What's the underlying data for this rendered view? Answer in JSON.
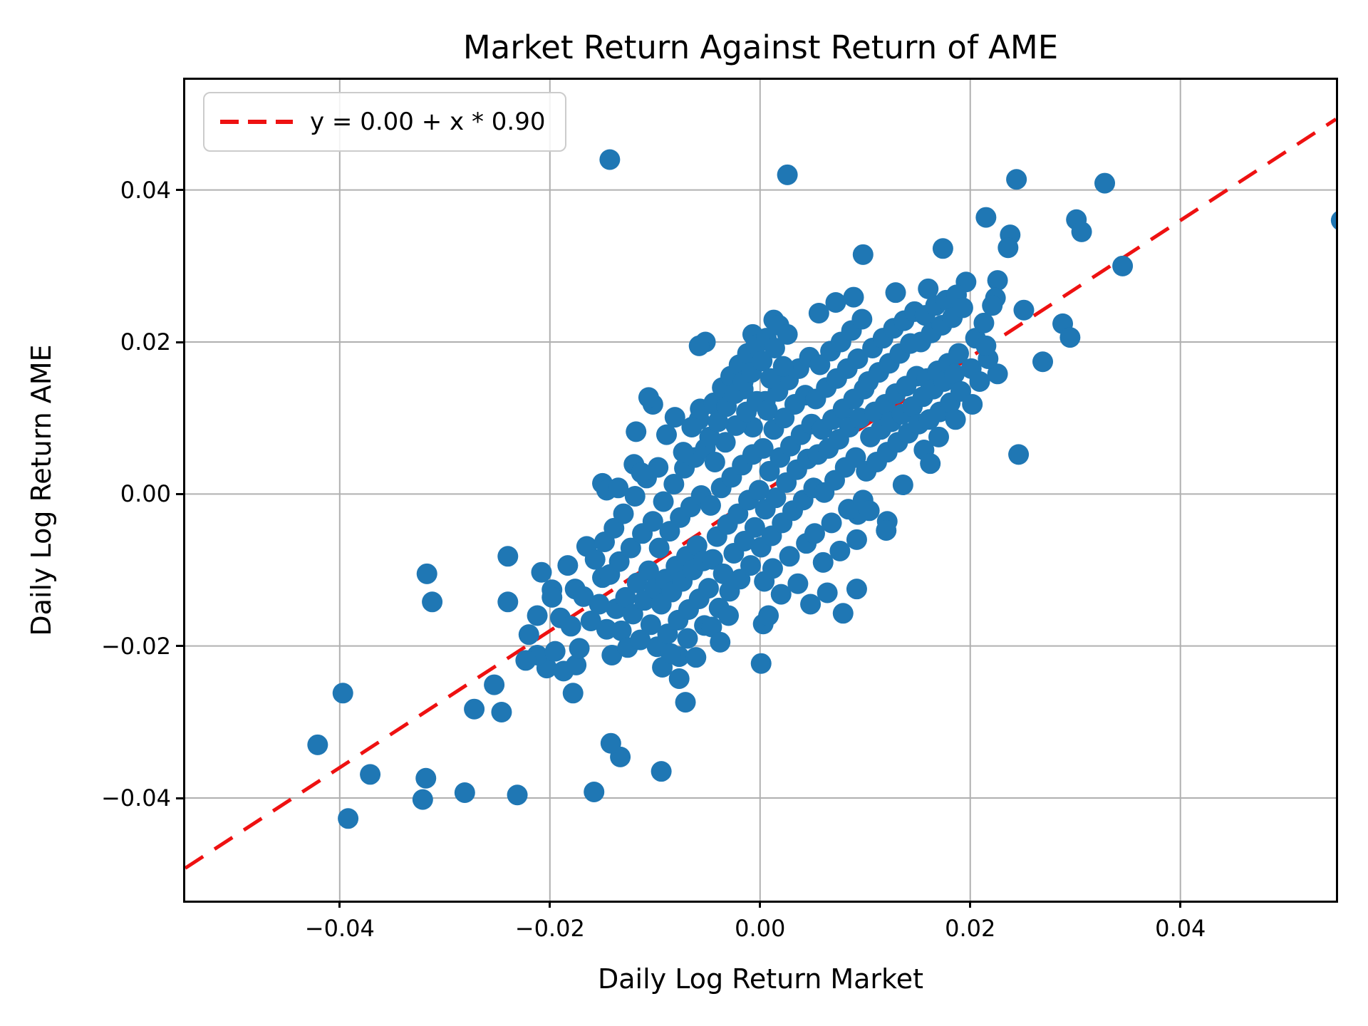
{
  "title": "Market Return Against Return of AME",
  "legend": {
    "entries": [
      {
        "label": "y = 0.00 + x * 0.90",
        "style": "dashed",
        "color": "#ee1111"
      }
    ]
  },
  "colors": {
    "point": "#1f77b4",
    "line": "#ee1111",
    "grid": "#b0b0b0",
    "spine": "#000000",
    "text": "#000000",
    "legend_edge": "#cccccc"
  },
  "chart_data": {
    "type": "scatter",
    "title": "Market Return Against Return of AME",
    "xlabel": "Daily Log Return Market",
    "ylabel": "Daily Log Return AME",
    "xlim": [
      -0.0547,
      0.0548
    ],
    "ylim": [
      -0.0535,
      0.0545
    ],
    "grid": true,
    "legend_position": "upper-left",
    "xticks": {
      "values": [
        -0.04,
        -0.02,
        0.0,
        0.02,
        0.04
      ],
      "labels": [
        "−0.04",
        "−0.02",
        "0.00",
        "0.02",
        "0.04"
      ]
    },
    "yticks": {
      "values": [
        0.04,
        0.02,
        0.0,
        -0.02,
        -0.04
      ],
      "labels": [
        "0.04",
        "0.02",
        "0.00",
        "−0.02",
        "−0.04"
      ]
    },
    "regression_line": {
      "label": "y = 0.00 + x * 0.90",
      "intercept": 0.0,
      "slope": 0.9,
      "color": "#ee1111",
      "dash": [
        30,
        19
      ],
      "width": 5
    },
    "marker": {
      "color": "#1f77b4",
      "radius": 14.5
    },
    "points": [
      [
        -0.0143,
        0.044
      ],
      [
        0.0026,
        0.042
      ],
      [
        0.0244,
        0.0414
      ],
      [
        0.0328,
        0.0409
      ],
      [
        0.0553,
        0.036
      ],
      [
        0.0215,
        0.0364
      ],
      [
        0.0238,
        0.0341
      ],
      [
        0.0236,
        0.0324
      ],
      [
        0.0301,
        0.0361
      ],
      [
        0.0306,
        0.0345
      ],
      [
        0.0345,
        0.03
      ],
      [
        0.0174,
        0.0323
      ],
      [
        0.0098,
        0.0315
      ],
      [
        0.0089,
        0.0259
      ],
      [
        0.0129,
        0.0265
      ],
      [
        0.016,
        0.027
      ],
      [
        0.0196,
        0.0279
      ],
      [
        0.0226,
        0.0281
      ],
      [
        0.0224,
        0.0258
      ],
      [
        0.0251,
        0.0242
      ],
      [
        0.0288,
        0.0224
      ],
      [
        0.0295,
        0.0206
      ],
      [
        0.0269,
        0.0174
      ],
      [
        0.0226,
        0.0158
      ],
      [
        0.0013,
        0.0229
      ],
      [
        0.0246,
        0.0052
      ],
      [
        0.0121,
        -0.0036
      ],
      [
        0.0093,
        -0.0027
      ],
      [
        0.0092,
        -0.0125
      ],
      [
        0.0079,
        -0.0157
      ],
      [
        0.0003,
        -0.0171
      ],
      [
        0.0001,
        -0.0223
      ],
      [
        -0.0077,
        -0.0214
      ],
      [
        -0.0071,
        -0.0274
      ],
      [
        -0.0094,
        -0.0365
      ],
      [
        -0.0133,
        -0.0346
      ],
      [
        -0.0142,
        -0.0328
      ],
      [
        -0.0158,
        -0.0392
      ],
      [
        -0.0175,
        -0.0225
      ],
      [
        -0.0178,
        -0.0262
      ],
      [
        -0.0203,
        -0.0229
      ],
      [
        -0.0212,
        -0.0212
      ],
      [
        -0.0223,
        -0.0219
      ],
      [
        -0.0231,
        -0.0396
      ],
      [
        -0.024,
        -0.0142
      ],
      [
        -0.024,
        -0.0082
      ],
      [
        -0.0246,
        -0.0287
      ],
      [
        -0.0253,
        -0.0251
      ],
      [
        -0.0272,
        -0.0283
      ],
      [
        -0.0281,
        -0.0393
      ],
      [
        -0.0312,
        -0.0142
      ],
      [
        -0.0317,
        -0.0105
      ],
      [
        -0.0318,
        -0.0374
      ],
      [
        -0.0321,
        -0.0402
      ],
      [
        -0.0371,
        -0.0369
      ],
      [
        -0.0392,
        -0.0427
      ],
      [
        -0.0397,
        -0.0262
      ],
      [
        -0.0421,
        -0.033
      ],
      [
        -0.0208,
        -0.0103
      ],
      [
        -0.0198,
        -0.0126
      ],
      [
        -0.0102,
        0.0118
      ],
      [
        -0.0052,
        0.02
      ],
      [
        -0.0007,
        0.021
      ],
      [
        -0.0043,
        0.0117
      ],
      [
        -0.0118,
        0.0082
      ],
      [
        -0.0007,
        0.0088
      ],
      [
        -0.0106,
        0.0127
      ],
      [
        -0.015,
        0.0014
      ],
      [
        -0.012,
        0.0039
      ],
      [
        -0.0058,
        0.0098
      ],
      [
        -0.0025,
        0.0144
      ],
      [
        0.0005,
        0.0122
      ],
      [
        -0.0212,
        -0.016
      ],
      [
        -0.022,
        -0.0185
      ],
      [
        -0.0058,
        0.0195
      ],
      [
        -0.0016,
        0.0138
      ],
      [
        -0.0198,
        -0.0136
      ],
      [
        -0.0195,
        -0.0207
      ],
      [
        -0.019,
        -0.0163
      ],
      [
        -0.0187,
        -0.0233
      ],
      [
        -0.0183,
        -0.0094
      ],
      [
        -0.018,
        -0.0174
      ],
      [
        -0.0176,
        -0.0125
      ],
      [
        -0.0172,
        -0.0203
      ],
      [
        -0.0168,
        -0.0135
      ],
      [
        -0.0165,
        -0.0069
      ],
      [
        -0.0161,
        -0.0167
      ],
      [
        -0.0157,
        -0.0086
      ],
      [
        -0.0153,
        -0.0145
      ],
      [
        -0.015,
        -0.011
      ],
      [
        -0.0148,
        -0.0063
      ],
      [
        -0.0146,
        -0.0178
      ],
      [
        -0.0143,
        -0.0106
      ],
      [
        -0.0141,
        -0.0212
      ],
      [
        -0.0139,
        -0.0045
      ],
      [
        -0.0137,
        -0.0151
      ],
      [
        -0.0134,
        -0.0089
      ],
      [
        -0.0132,
        -0.018
      ],
      [
        -0.013,
        -0.0026
      ],
      [
        -0.0128,
        -0.0136
      ],
      [
        -0.0126,
        -0.0202
      ],
      [
        -0.0123,
        -0.0071
      ],
      [
        -0.0121,
        -0.0158
      ],
      [
        -0.0119,
        -0.0003
      ],
      [
        -0.0117,
        -0.0117
      ],
      [
        -0.0114,
        -0.0192
      ],
      [
        -0.0112,
        -0.0052
      ],
      [
        -0.011,
        -0.014
      ],
      [
        -0.0108,
        0.0021
      ],
      [
        -0.0106,
        -0.0101
      ],
      [
        -0.0104,
        -0.0172
      ],
      [
        -0.0102,
        -0.0036
      ],
      [
        -0.01,
        -0.0124
      ],
      [
        -0.0113,
        0.0028
      ],
      [
        -0.0146,
        0.0005
      ],
      [
        -0.0135,
        0.0008
      ],
      [
        -0.0098,
        -0.0201
      ],
      [
        -0.0096,
        -0.0071
      ],
      [
        -0.0094,
        -0.0145
      ],
      [
        -0.0092,
        -0.001
      ],
      [
        -0.009,
        -0.0112
      ],
      [
        -0.0088,
        -0.0184
      ],
      [
        -0.0086,
        -0.0049
      ],
      [
        -0.0084,
        -0.0129
      ],
      [
        -0.0082,
        0.0013
      ],
      [
        -0.008,
        -0.0095
      ],
      [
        -0.0078,
        -0.0166
      ],
      [
        -0.0076,
        -0.0031
      ],
      [
        -0.0074,
        -0.0115
      ],
      [
        -0.0072,
        0.0034
      ],
      [
        -0.007,
        -0.0082
      ],
      [
        -0.0068,
        -0.0152
      ],
      [
        -0.0066,
        -0.0017
      ],
      [
        -0.0064,
        -0.01
      ],
      [
        -0.0062,
        0.0048
      ],
      [
        -0.006,
        -0.0068
      ],
      [
        -0.0058,
        -0.0138
      ],
      [
        -0.0056,
        -0.0002
      ],
      [
        -0.0054,
        -0.0088
      ],
      [
        -0.0052,
        0.006
      ],
      [
        -0.0097,
        0.0035
      ],
      [
        -0.0089,
        0.0078
      ],
      [
        -0.0081,
        0.0101
      ],
      [
        -0.0073,
        0.0055
      ],
      [
        -0.0065,
        0.0088
      ],
      [
        -0.0057,
        0.0112
      ],
      [
        -0.0093,
        -0.0228
      ],
      [
        -0.0085,
        -0.021
      ],
      [
        -0.0077,
        -0.0243
      ],
      [
        -0.0069,
        -0.019
      ],
      [
        -0.0061,
        -0.0215
      ],
      [
        -0.0053,
        -0.0173
      ],
      [
        -0.0049,
        -0.0124
      ],
      [
        -0.0047,
        -0.0015
      ],
      [
        -0.0045,
        -0.0086
      ],
      [
        -0.0043,
        0.0042
      ],
      [
        -0.0041,
        -0.0056
      ],
      [
        -0.0039,
        -0.015
      ],
      [
        -0.0037,
        0.0008
      ],
      [
        -0.0035,
        -0.0105
      ],
      [
        -0.0033,
        0.0068
      ],
      [
        -0.0031,
        -0.004
      ],
      [
        -0.0029,
        -0.0128
      ],
      [
        -0.0027,
        0.0022
      ],
      [
        -0.0025,
        -0.0078
      ],
      [
        -0.0023,
        0.009
      ],
      [
        -0.0021,
        -0.0026
      ],
      [
        -0.0019,
        -0.0112
      ],
      [
        -0.0017,
        0.0038
      ],
      [
        -0.0015,
        -0.0062
      ],
      [
        -0.0013,
        0.0108
      ],
      [
        -0.0011,
        -0.0008
      ],
      [
        -0.0009,
        -0.0094
      ],
      [
        -0.0007,
        0.0052
      ],
      [
        -0.0005,
        -0.0044
      ],
      [
        -0.0003,
        0.0122
      ],
      [
        -0.0001,
        0.0005
      ],
      [
        -0.0048,
        0.0075
      ],
      [
        -0.0044,
        0.012
      ],
      [
        -0.004,
        0.0095
      ],
      [
        -0.0036,
        0.014
      ],
      [
        -0.0032,
        0.0115
      ],
      [
        -0.0028,
        0.0155
      ],
      [
        -0.0024,
        0.0132
      ],
      [
        -0.002,
        0.017
      ],
      [
        -0.0016,
        0.0148
      ],
      [
        -0.0012,
        0.0185
      ],
      [
        -0.0008,
        0.016
      ],
      [
        -0.0004,
        0.0196
      ],
      [
        -0.0046,
        -0.0175
      ],
      [
        -0.0038,
        -0.0195
      ],
      [
        -0.003,
        -0.016
      ],
      [
        0.0001,
        -0.007
      ],
      [
        0.0003,
        0.006
      ],
      [
        0.0005,
        -0.002
      ],
      [
        0.0007,
        0.011
      ],
      [
        0.0009,
        0.003
      ],
      [
        0.0011,
        -0.0055
      ],
      [
        0.0013,
        0.0085
      ],
      [
        0.0015,
        -0.0005
      ],
      [
        0.0017,
        0.0135
      ],
      [
        0.0019,
        0.0048
      ],
      [
        0.0021,
        -0.0038
      ],
      [
        0.0023,
        0.01
      ],
      [
        0.0025,
        0.0015
      ],
      [
        0.0027,
        0.015
      ],
      [
        0.0029,
        0.0063
      ],
      [
        0.0031,
        -0.0022
      ],
      [
        0.0033,
        0.0118
      ],
      [
        0.0035,
        0.0032
      ],
      [
        0.0037,
        0.0165
      ],
      [
        0.0039,
        0.0078
      ],
      [
        0.0041,
        -0.0008
      ],
      [
        0.0043,
        0.013
      ],
      [
        0.0045,
        0.0046
      ],
      [
        0.0047,
        0.018
      ],
      [
        0.0049,
        0.0092
      ],
      [
        0.0002,
        0.0175
      ],
      [
        0.0006,
        0.0205
      ],
      [
        0.001,
        0.0152
      ],
      [
        0.0014,
        0.0192
      ],
      [
        0.0018,
        0.0222
      ],
      [
        0.0022,
        0.0168
      ],
      [
        0.0026,
        0.021
      ],
      [
        0.0004,
        -0.0115
      ],
      [
        0.0012,
        -0.0098
      ],
      [
        0.002,
        -0.0132
      ],
      [
        0.0028,
        -0.0082
      ],
      [
        0.0036,
        -0.0118
      ],
      [
        0.0044,
        -0.0065
      ],
      [
        0.0048,
        -0.0145
      ],
      [
        0.0008,
        -0.016
      ],
      [
        0.0051,
        0.0008
      ],
      [
        0.0053,
        0.0125
      ],
      [
        0.0055,
        0.0052
      ],
      [
        0.0057,
        0.017
      ],
      [
        0.0059,
        0.0085
      ],
      [
        0.0061,
        0.0002
      ],
      [
        0.0063,
        0.014
      ],
      [
        0.0065,
        0.006
      ],
      [
        0.0067,
        0.0188
      ],
      [
        0.0069,
        0.0098
      ],
      [
        0.0071,
        0.0018
      ],
      [
        0.0073,
        0.0152
      ],
      [
        0.0075,
        0.0072
      ],
      [
        0.0077,
        0.02
      ],
      [
        0.0079,
        0.0112
      ],
      [
        0.0081,
        0.0035
      ],
      [
        0.0083,
        0.0165
      ],
      [
        0.0085,
        0.0088
      ],
      [
        0.0087,
        0.0215
      ],
      [
        0.0089,
        0.0125
      ],
      [
        0.0091,
        0.0048
      ],
      [
        0.0093,
        0.0178
      ],
      [
        0.0095,
        0.01
      ],
      [
        0.0097,
        0.023
      ],
      [
        0.0099,
        0.0138
      ],
      [
        0.0052,
        -0.0052
      ],
      [
        0.006,
        -0.009
      ],
      [
        0.0068,
        -0.0038
      ],
      [
        0.0076,
        -0.0075
      ],
      [
        0.0084,
        -0.002
      ],
      [
        0.0092,
        -0.006
      ],
      [
        0.0098,
        -0.0008
      ],
      [
        0.0056,
        0.0238
      ],
      [
        0.0072,
        0.0252
      ],
      [
        0.0064,
        -0.013
      ],
      [
        0.0101,
        0.003
      ],
      [
        0.0103,
        0.0148
      ],
      [
        0.0105,
        0.0075
      ],
      [
        0.0107,
        0.0192
      ],
      [
        0.0109,
        0.0108
      ],
      [
        0.0111,
        0.0042
      ],
      [
        0.0113,
        0.016
      ],
      [
        0.0115,
        0.0085
      ],
      [
        0.0117,
        0.0205
      ],
      [
        0.0119,
        0.0118
      ],
      [
        0.0121,
        0.0055
      ],
      [
        0.0123,
        0.0172
      ],
      [
        0.0125,
        0.0095
      ],
      [
        0.0127,
        0.0218
      ],
      [
        0.0129,
        0.0132
      ],
      [
        0.0131,
        0.0068
      ],
      [
        0.0133,
        0.0185
      ],
      [
        0.0135,
        0.0105
      ],
      [
        0.0137,
        0.0228
      ],
      [
        0.0139,
        0.0142
      ],
      [
        0.0141,
        0.008
      ],
      [
        0.0143,
        0.0198
      ],
      [
        0.0145,
        0.0115
      ],
      [
        0.0147,
        0.024
      ],
      [
        0.0149,
        0.0155
      ],
      [
        0.0104,
        -0.0022
      ],
      [
        0.012,
        -0.0048
      ],
      [
        0.0136,
        0.0012
      ],
      [
        0.0151,
        0.0092
      ],
      [
        0.0153,
        0.02
      ],
      [
        0.0155,
        0.0128
      ],
      [
        0.0157,
        0.0235
      ],
      [
        0.0159,
        0.0152
      ],
      [
        0.0161,
        0.0098
      ],
      [
        0.0163,
        0.0212
      ],
      [
        0.0165,
        0.0138
      ],
      [
        0.0167,
        0.0248
      ],
      [
        0.0169,
        0.0162
      ],
      [
        0.0171,
        0.0108
      ],
      [
        0.0173,
        0.0222
      ],
      [
        0.0175,
        0.0148
      ],
      [
        0.0177,
        0.0255
      ],
      [
        0.0179,
        0.0172
      ],
      [
        0.0181,
        0.012
      ],
      [
        0.0183,
        0.0232
      ],
      [
        0.0185,
        0.0158
      ],
      [
        0.0187,
        0.0262
      ],
      [
        0.0189,
        0.0185
      ],
      [
        0.0191,
        0.0135
      ],
      [
        0.0193,
        0.0245
      ],
      [
        0.0156,
        0.0058
      ],
      [
        0.017,
        0.0075
      ],
      [
        0.0186,
        0.0098
      ],
      [
        0.0162,
        0.004
      ],
      [
        0.0201,
        0.0165
      ],
      [
        0.0205,
        0.0205
      ],
      [
        0.0209,
        0.0148
      ],
      [
        0.0213,
        0.0225
      ],
      [
        0.0217,
        0.0178
      ],
      [
        0.0221,
        0.0248
      ],
      [
        0.0202,
        0.0118
      ],
      [
        0.0215,
        0.0195
      ]
    ]
  }
}
